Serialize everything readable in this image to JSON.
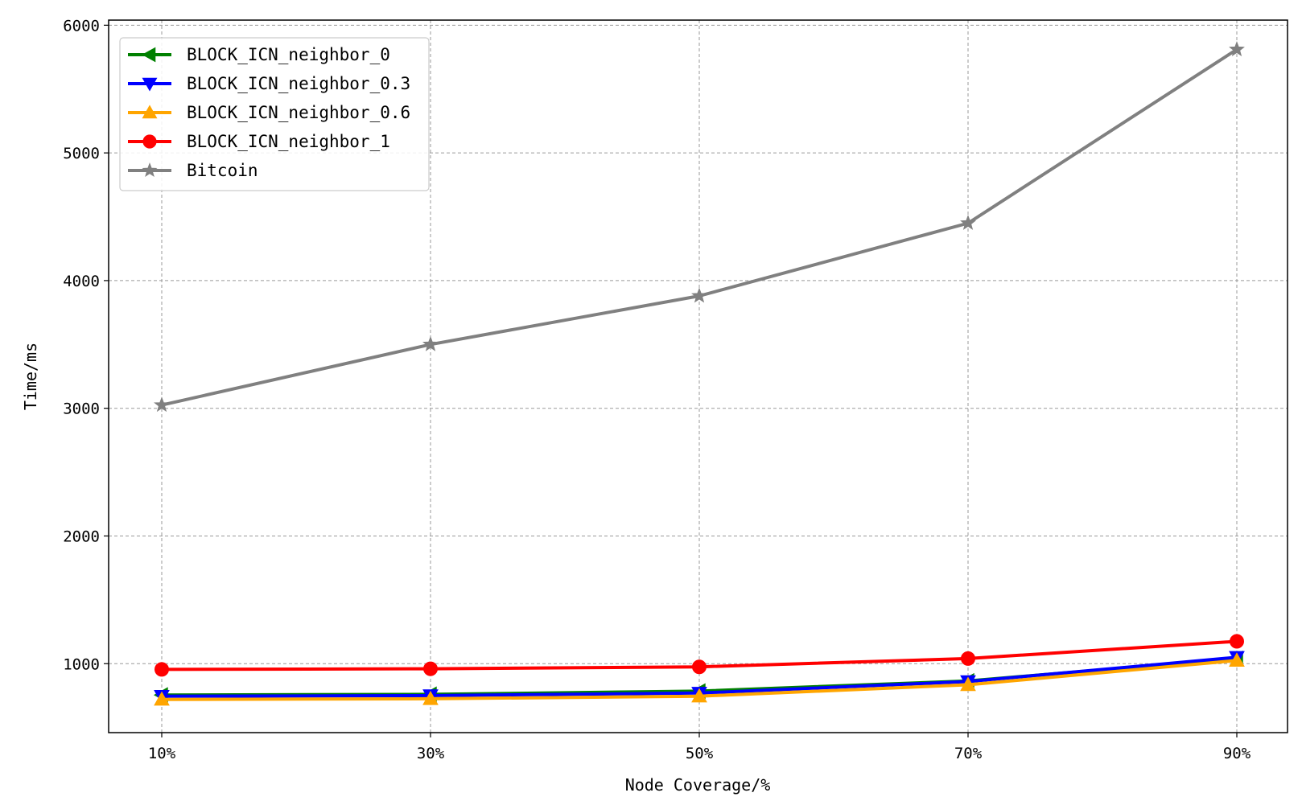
{
  "chart_data": {
    "type": "line",
    "title": "",
    "xlabel": "Node Coverage/%",
    "ylabel": "Time/ms",
    "categories": [
      "10%",
      "30%",
      "50%",
      "70%",
      "90%"
    ],
    "x_ticks": [
      "10%",
      "30%",
      "50%",
      "70%",
      "90%"
    ],
    "y_ticks": [
      "1000",
      "2000",
      "3000",
      "4000",
      "5000",
      "6000"
    ],
    "ylim": [
      460,
      6040
    ],
    "grid": true,
    "legend_position": "top-left",
    "series": [
      {
        "name": "BLOCK_ICN_neighbor_0",
        "color": "#008000",
        "marker": "triangle-left",
        "values": [
          755,
          760,
          785,
          865,
          1040
        ]
      },
      {
        "name": "BLOCK_ICN_neighbor_0.3",
        "color": "#0000ff",
        "marker": "triangle-down",
        "values": [
          745,
          750,
          770,
          860,
          1050
        ]
      },
      {
        "name": "BLOCK_ICN_neighbor_0.6",
        "color": "#ffa500",
        "marker": "triangle-up",
        "values": [
          720,
          725,
          745,
          835,
          1025
        ]
      },
      {
        "name": "BLOCK_ICN_neighbor_1",
        "color": "#ff0000",
        "marker": "circle",
        "values": [
          955,
          960,
          975,
          1040,
          1175
        ]
      },
      {
        "name": "Bitcoin",
        "color": "#808080",
        "marker": "star",
        "values": [
          3025,
          3500,
          3880,
          4450,
          5810
        ]
      }
    ]
  }
}
